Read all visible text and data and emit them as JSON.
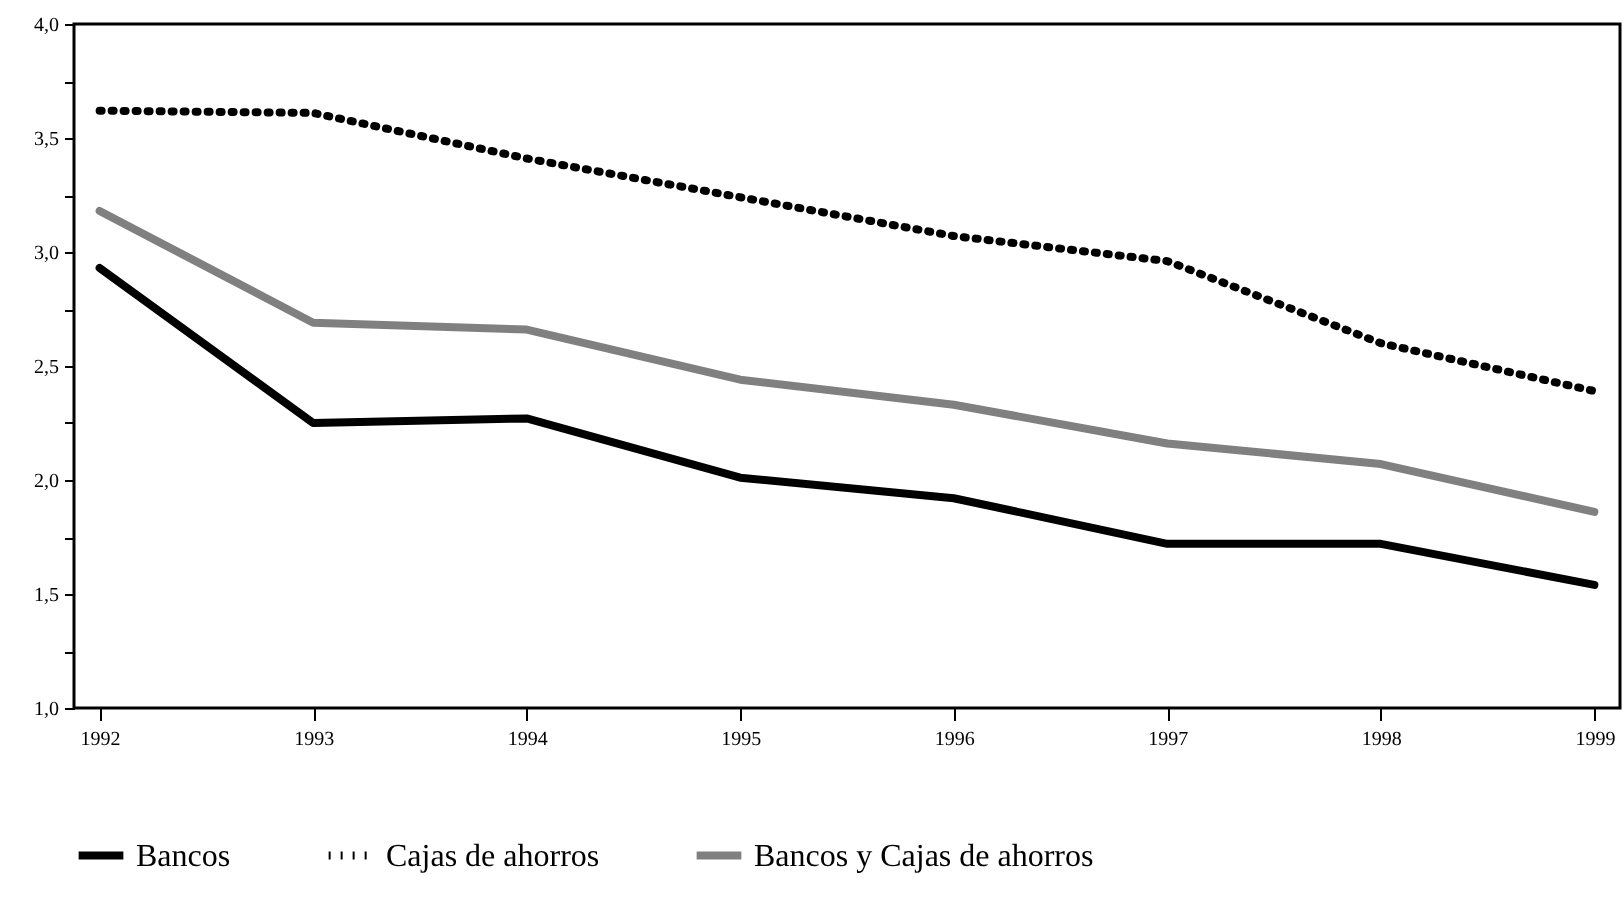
{
  "chart_data": {
    "type": "line",
    "x": [
      1992,
      1993,
      1994,
      1995,
      1996,
      1997,
      1998,
      1999
    ],
    "xlim": [
      1991.88,
      1999.12
    ],
    "xticks": [
      1992,
      1993,
      1994,
      1995,
      1996,
      1997,
      1998,
      1999
    ],
    "ylim": [
      1.0,
      4.0
    ],
    "yticks": [
      {
        "value": 1.0,
        "label": "1,0"
      },
      {
        "value": 1.25,
        "label": null
      },
      {
        "value": 1.5,
        "label": "1,5"
      },
      {
        "value": 1.75,
        "label": null
      },
      {
        "value": 2.0,
        "label": "2,0"
      },
      {
        "value": 2.25,
        "label": null
      },
      {
        "value": 2.5,
        "label": "2,5"
      },
      {
        "value": 2.75,
        "label": null
      },
      {
        "value": 3.0,
        "label": "3,0"
      },
      {
        "value": 3.25,
        "label": null
      },
      {
        "value": 3.5,
        "label": "3,5"
      },
      {
        "value": 3.75,
        "label": null
      },
      {
        "value": 4.0,
        "label": "4,0"
      }
    ],
    "grid": false,
    "legend": "bottom",
    "marker": "none",
    "series": [
      {
        "name": "Bancos",
        "color": "#000000",
        "line_style": "solid",
        "values": [
          2.93,
          2.25,
          2.27,
          2.01,
          1.92,
          1.72,
          1.72,
          1.54
        ]
      },
      {
        "name": "Cajas de ahorros",
        "color": "#000000",
        "line_style": "dotted",
        "values": [
          3.62,
          3.61,
          3.41,
          3.24,
          3.07,
          2.96,
          2.6,
          2.39
        ]
      },
      {
        "name": "Bancos y Cajas de ahorros",
        "color": "#808080",
        "line_style": "solid",
        "values": [
          3.18,
          2.69,
          2.66,
          2.44,
          2.33,
          2.16,
          2.07,
          1.86
        ]
      }
    ]
  }
}
